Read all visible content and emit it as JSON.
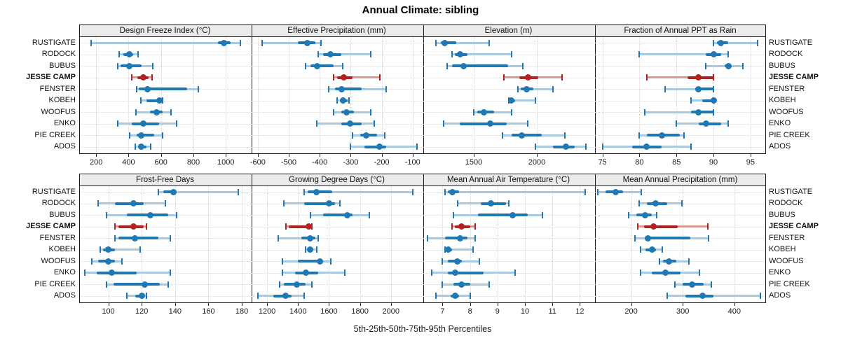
{
  "title": "Annual Climate: sibling",
  "caption": "5th-25th-50th-75th-95th Percentiles",
  "categories": [
    "RUSTIGATE",
    "RODOCK",
    "BUBUS",
    "JESSE CAMP",
    "FENSTER",
    "KOBEH",
    "WOOFUS",
    "ENKO",
    "PIE CREEK",
    "ADOS"
  ],
  "highlight_category": "JESSE CAMP",
  "colors": {
    "series_blue": "#1f77b4",
    "series_blue_light": "#a8cbe2",
    "highlight_red": "#b22222",
    "highlight_red_light": "#d79a93",
    "strip_bg": "#ebebeb",
    "panel_border": "#1a1a1a",
    "grid": "#d8d8d8"
  },
  "chart_data": {
    "type": "percentile-dotplot-trellis",
    "percentiles": [
      "5th",
      "25th",
      "50th",
      "75th",
      "95th"
    ],
    "layout": {
      "rows": 2,
      "cols": 4,
      "grid": "dotted",
      "category_axis": "y",
      "labels_both_sides": true
    },
    "panels": [
      {
        "row": 0,
        "col": 0,
        "title": "Design Freeze Index (°C)",
        "xlim": [
          100,
          1150
        ],
        "ticks": [
          200,
          400,
          600,
          800,
          1000
        ],
        "values": [
          [
            170,
            950,
            990,
            1030,
            1090
          ],
          [
            340,
            370,
            405,
            430,
            460
          ],
          [
            335,
            350,
            405,
            480,
            550
          ],
          [
            420,
            455,
            490,
            525,
            545
          ],
          [
            450,
            465,
            515,
            760,
            830
          ],
          [
            475,
            510,
            590,
            600,
            610
          ],
          [
            445,
            530,
            575,
            610,
            660
          ],
          [
            335,
            420,
            490,
            590,
            695
          ],
          [
            405,
            450,
            480,
            560,
            610
          ],
          [
            440,
            460,
            480,
            510,
            535
          ]
        ]
      },
      {
        "row": 0,
        "col": 1,
        "title": "Effective Precipitation (mm)",
        "xlim": [
          -620,
          -70
        ],
        "ticks": [
          -600,
          -500,
          -400,
          -300,
          -200,
          -100
        ],
        "values": [
          [
            -585,
            -470,
            -440,
            -415,
            -395
          ],
          [
            -405,
            -390,
            -365,
            -330,
            -235
          ],
          [
            -445,
            -430,
            -408,
            -355,
            -325
          ],
          [
            -355,
            -345,
            -322,
            -295,
            -205
          ],
          [
            -370,
            -350,
            -330,
            -265,
            -185
          ],
          [
            -345,
            -335,
            -325,
            -310,
            -305
          ],
          [
            -355,
            -330,
            -313,
            -290,
            -235
          ],
          [
            -410,
            -330,
            -302,
            -265,
            -225
          ],
          [
            -295,
            -270,
            -250,
            -215,
            -190
          ],
          [
            -300,
            -255,
            -207,
            -185,
            -85
          ]
        ]
      },
      {
        "row": 0,
        "col": 2,
        "title": "Elevation (m)",
        "xlim": [
          1100,
          2450
        ],
        "ticks": [
          1500,
          2000
        ],
        "values": [
          [
            1200,
            1240,
            1270,
            1360,
            1620
          ],
          [
            1330,
            1350,
            1390,
            1450,
            1800
          ],
          [
            1290,
            1330,
            1420,
            1770,
            1890
          ],
          [
            1740,
            1860,
            1930,
            2010,
            2200
          ],
          [
            1850,
            1870,
            1920,
            1970,
            2130
          ],
          [
            1780,
            1785,
            1795,
            1830,
            1990
          ],
          [
            1500,
            1530,
            1580,
            1660,
            1800
          ],
          [
            1260,
            1390,
            1630,
            1760,
            1930
          ],
          [
            1730,
            1800,
            1880,
            2040,
            2220
          ],
          [
            1990,
            2130,
            2230,
            2300,
            2390
          ]
        ]
      },
      {
        "row": 0,
        "col": 3,
        "title": "Fraction of Annual PPT as Rain",
        "xlim": [
          74,
          97
        ],
        "ticks": [
          75,
          80,
          85,
          90,
          95
        ],
        "values": [
          [
            90,
            90.5,
            91,
            92,
            96
          ],
          [
            80,
            89,
            90,
            91,
            92
          ],
          [
            89,
            91.5,
            92,
            92.5,
            94
          ],
          [
            81,
            86.5,
            88,
            90,
            90
          ],
          [
            83.5,
            87.5,
            88,
            90,
            90
          ],
          [
            87,
            88.5,
            90,
            90,
            90
          ],
          [
            80.7,
            87,
            88,
            90,
            90
          ],
          [
            85,
            88,
            89,
            91,
            92
          ],
          [
            80,
            81,
            83,
            85.5,
            86
          ],
          [
            75,
            79,
            81,
            83,
            87
          ]
        ]
      },
      {
        "row": 1,
        "col": 0,
        "title": "Frost-Free Days",
        "xlim": [
          83,
          185
        ],
        "ticks": [
          100,
          120,
          140,
          160,
          180
        ],
        "values": [
          [
            130,
            133,
            139,
            141,
            178
          ],
          [
            94,
            104,
            115,
            121,
            134
          ],
          [
            99,
            111,
            125,
            136,
            141
          ],
          [
            104,
            106,
            115,
            121,
            123
          ],
          [
            104,
            106,
            116,
            130,
            137
          ],
          [
            95,
            97,
            100,
            104,
            119
          ],
          [
            90,
            94,
            100,
            104,
            108
          ],
          [
            86,
            93,
            102,
            117,
            137
          ],
          [
            99,
            103,
            122,
            131,
            136
          ],
          [
            111,
            116,
            120,
            122,
            123
          ]
        ]
      },
      {
        "row": 1,
        "col": 1,
        "title": "Growing Degree Days (°C)",
        "xlim": [
          1100,
          2200
        ],
        "ticks": [
          1200,
          1400,
          1600,
          1800,
          2000
        ],
        "values": [
          [
            1440,
            1460,
            1520,
            1620,
            2140
          ],
          [
            1310,
            1440,
            1600,
            1640,
            1670
          ],
          [
            1480,
            1560,
            1720,
            1750,
            1860
          ],
          [
            1320,
            1340,
            1470,
            1480,
            1490
          ],
          [
            1270,
            1420,
            1480,
            1510,
            1530
          ],
          [
            1450,
            1460,
            1480,
            1500,
            1520
          ],
          [
            1300,
            1400,
            1540,
            1560,
            1610
          ],
          [
            1300,
            1380,
            1450,
            1530,
            1700
          ],
          [
            1280,
            1310,
            1390,
            1450,
            1490
          ],
          [
            1140,
            1240,
            1320,
            1360,
            1440
          ]
        ]
      },
      {
        "row": 1,
        "col": 2,
        "title": "Mean Annual Air Temperature (°C)",
        "xlim": [
          6.3,
          12.5
        ],
        "ticks": [
          7,
          8,
          9,
          10,
          11,
          12
        ],
        "values": [
          [
            7.1,
            7.2,
            7.35,
            7.6,
            12.2
          ],
          [
            7.55,
            8.4,
            8.75,
            9.3,
            9.4
          ],
          [
            7.4,
            8.3,
            9.55,
            10.1,
            10.65
          ],
          [
            7.35,
            7.45,
            7.7,
            8.0,
            8.2
          ],
          [
            6.45,
            7.1,
            7.65,
            7.9,
            8.2
          ],
          [
            7.1,
            7.15,
            7.2,
            7.35,
            8.1
          ],
          [
            7.0,
            7.2,
            7.55,
            7.7,
            8.35
          ],
          [
            6.6,
            7.2,
            7.45,
            8.5,
            9.65
          ],
          [
            7.0,
            7.4,
            7.7,
            8.0,
            8.7
          ],
          [
            6.75,
            7.3,
            7.45,
            7.6,
            8.0
          ]
        ]
      },
      {
        "row": 1,
        "col": 3,
        "title": "Mean Annual Precipitation (mm)",
        "xlim": [
          130,
          460
        ],
        "ticks": [
          200,
          300,
          400
        ],
        "values": [
          [
            135,
            150,
            170,
            185,
            220
          ],
          [
            215,
            230,
            248,
            270,
            298
          ],
          [
            195,
            210,
            227,
            240,
            250
          ],
          [
            213,
            225,
            243,
            290,
            348
          ],
          [
            208,
            230,
            232,
            315,
            350
          ],
          [
            218,
            228,
            240,
            248,
            260
          ],
          [
            255,
            262,
            273,
            288,
            312
          ],
          [
            218,
            240,
            267,
            295,
            332
          ],
          [
            285,
            300,
            318,
            340,
            355
          ],
          [
            270,
            305,
            338,
            360,
            450
          ]
        ]
      }
    ]
  }
}
